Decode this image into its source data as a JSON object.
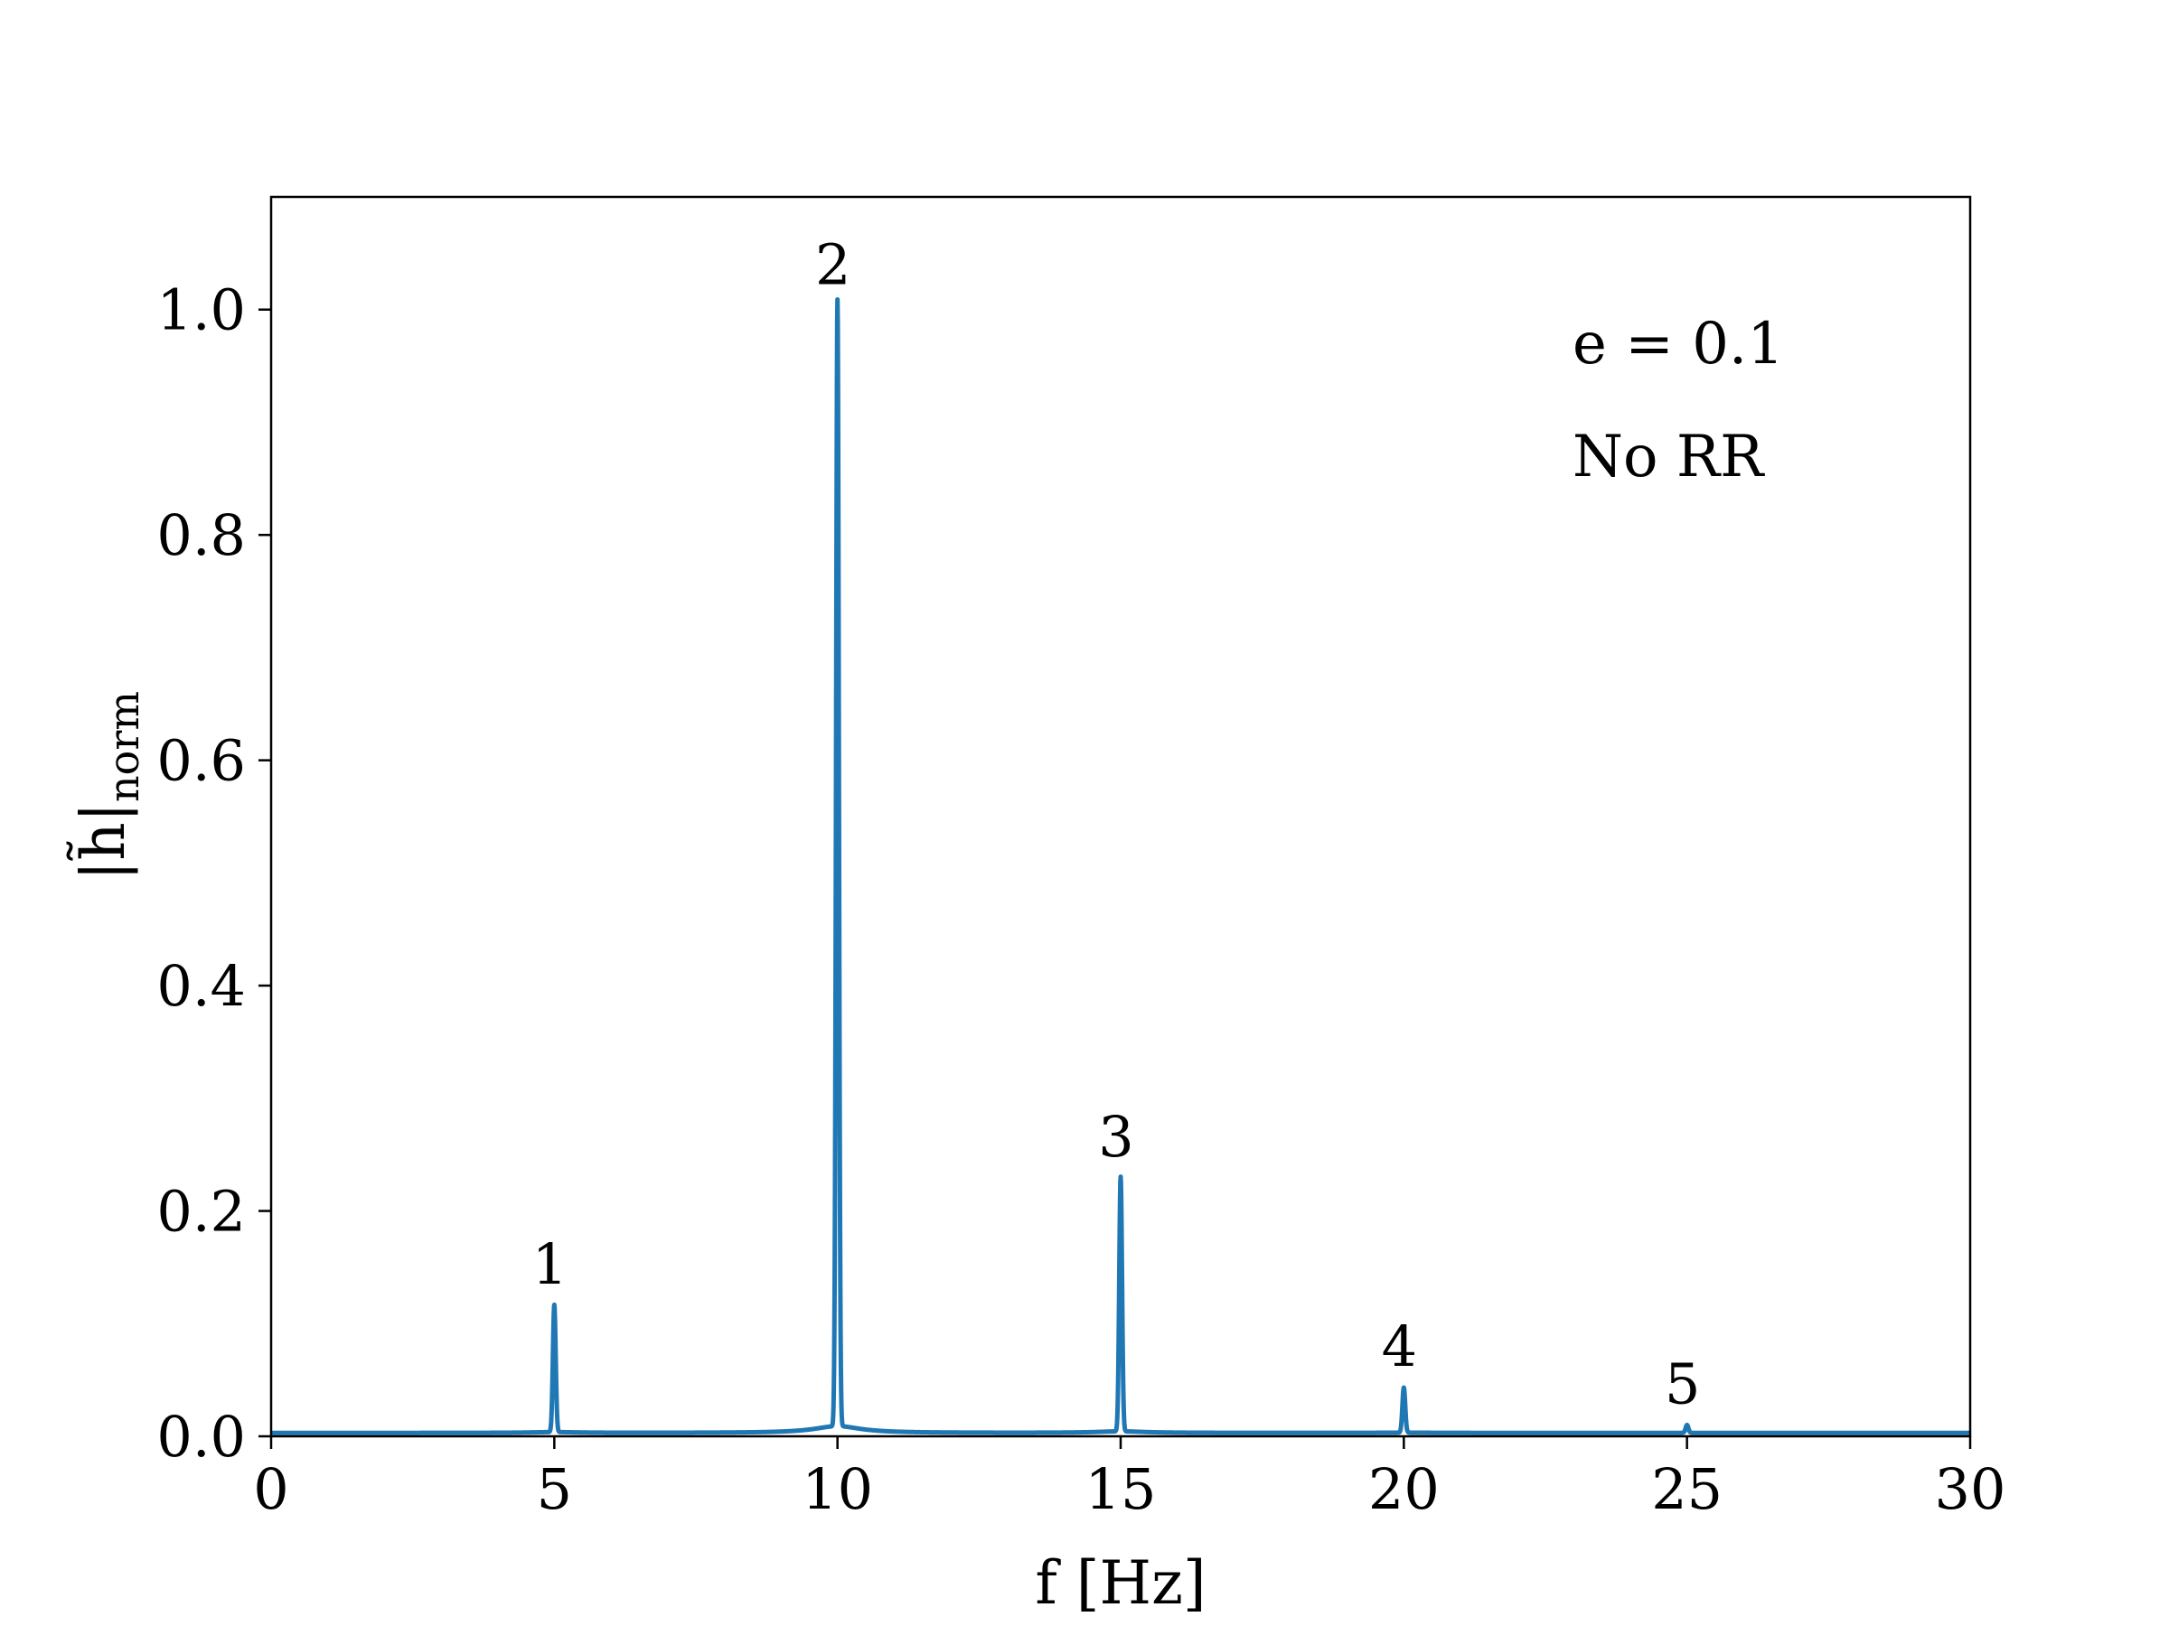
{
  "chart_data": {
    "type": "line",
    "xlabel": "f [Hz]",
    "ylabel": "|h̃|",
    "ylabel_subscript": "norm",
    "xlim": [
      0,
      30
    ],
    "ylim": [
      0,
      1.1
    ],
    "xticks": [
      0,
      5,
      10,
      15,
      20,
      25,
      30
    ],
    "xtick_labels": [
      "0",
      "5",
      "10",
      "15",
      "20",
      "25",
      "30"
    ],
    "yticks": [
      0.0,
      0.2,
      0.4,
      0.6,
      0.8,
      1.0
    ],
    "ytick_labels": [
      "0.0",
      "0.2",
      "0.4",
      "0.6",
      "0.8",
      "1.0"
    ],
    "grid": false,
    "series": [
      {
        "color": "#1f77b4",
        "baseline": 0.003,
        "peaks": [
          {
            "x": 5,
            "y": 0.113
          },
          {
            "x": 10,
            "y": 1.0
          },
          {
            "x": 15,
            "y": 0.226
          },
          {
            "x": 20,
            "y": 0.04
          },
          {
            "x": 25,
            "y": 0.007
          }
        ]
      }
    ],
    "peak_labels": [
      {
        "text": "1",
        "x": 5,
        "y": 0.113
      },
      {
        "text": "2",
        "x": 10,
        "y": 1.0
      },
      {
        "text": "3",
        "x": 15,
        "y": 0.226
      },
      {
        "text": "4",
        "x": 20,
        "y": 0.04
      },
      {
        "text": "5",
        "x": 25,
        "y": 0.007
      }
    ],
    "annotations": [
      "e = 0.1",
      "No RR"
    ]
  }
}
